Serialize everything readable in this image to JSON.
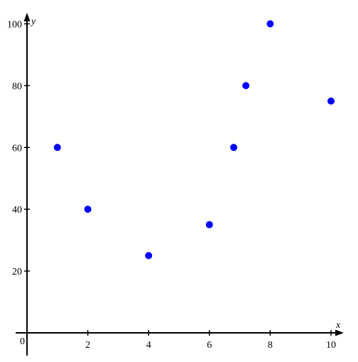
{
  "chart_data": {
    "type": "scatter",
    "xlabel": "x",
    "ylabel": "y",
    "origin_label": "0",
    "xlim": [
      0,
      10.3
    ],
    "ylim": [
      0,
      103
    ],
    "x_ticks": [
      2,
      4,
      6,
      8,
      10
    ],
    "y_ticks": [
      20,
      40,
      60,
      80,
      100
    ],
    "grid": false,
    "marker_color": "#0000ff",
    "points": [
      {
        "x": 1,
        "y": 60
      },
      {
        "x": 2,
        "y": 40
      },
      {
        "x": 4,
        "y": 25
      },
      {
        "x": 6,
        "y": 35
      },
      {
        "x": 6.8,
        "y": 60
      },
      {
        "x": 7.2,
        "y": 80
      },
      {
        "x": 8,
        "y": 100
      },
      {
        "x": 10,
        "y": 75
      }
    ]
  }
}
